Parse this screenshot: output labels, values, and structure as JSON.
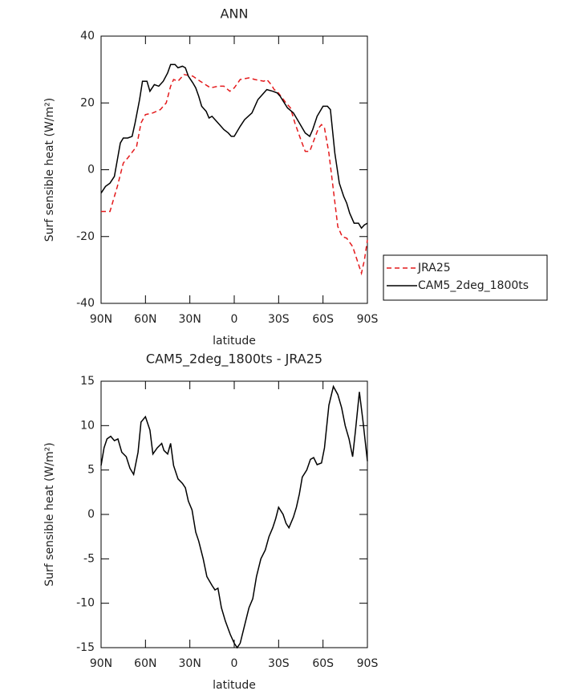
{
  "chart_data": [
    {
      "type": "line",
      "title": "ANN",
      "xlabel": "latitude",
      "ylabel": "Surf sensible heat (W/m²)",
      "xlim": [
        90,
        -90
      ],
      "xticks": [
        {
          "value": 90,
          "label": "90N"
        },
        {
          "value": 60,
          "label": "60N"
        },
        {
          "value": 30,
          "label": "30N"
        },
        0,
        {
          "value": -30,
          "label": "30S"
        },
        {
          "value": -60,
          "label": "60S"
        },
        {
          "value": -90,
          "label": "90S"
        }
      ],
      "ylim": [
        -40,
        40
      ],
      "yticks": [
        -40,
        -20,
        0,
        20,
        40
      ],
      "legend": "outside right",
      "series": [
        {
          "name": "JRA25",
          "color": "#e41a1c",
          "line_style": "dashed",
          "x": [
            90,
            84,
            79,
            75,
            72,
            66,
            63,
            60,
            55,
            50,
            46,
            43,
            41,
            38,
            34,
            28,
            23,
            16,
            11,
            7,
            3,
            0,
            -4,
            -10,
            -14,
            -20,
            -22,
            -25,
            -27,
            -29,
            -35,
            -38,
            -41,
            -45,
            -48,
            -51,
            -54,
            -57,
            -59,
            -61,
            -64,
            -70,
            -73,
            -76,
            -80,
            -83,
            -86,
            -88,
            -90
          ],
          "values": [
            -12.5,
            -12.5,
            -5,
            2,
            3.5,
            7,
            14,
            16.5,
            17,
            18,
            20,
            25,
            27,
            26.5,
            28.5,
            28,
            26.5,
            24.5,
            25,
            25,
            23.5,
            24.5,
            27,
            27.5,
            27,
            26.5,
            27,
            25.5,
            24,
            23.5,
            20,
            18.5,
            14,
            9,
            5.5,
            5.5,
            9,
            12.5,
            13.5,
            12.5,
            5,
            -17,
            -20,
            -20.5,
            -23,
            -27,
            -31,
            -27,
            -21
          ]
        },
        {
          "name": "CAM5_2deg_1800ts",
          "color": "#000000",
          "line_style": "solid",
          "x": [
            90,
            87,
            84,
            81,
            79,
            77,
            75,
            72,
            69,
            67,
            64,
            62,
            59,
            57,
            54,
            51,
            48,
            45,
            43,
            40,
            38,
            35,
            33,
            31,
            28,
            26,
            24,
            22,
            19,
            17,
            15,
            12,
            10,
            7,
            4,
            2,
            0,
            -4,
            -7,
            -12,
            -16,
            -22,
            -26,
            -29,
            -31,
            -36,
            -40,
            -44,
            -48,
            -51,
            -53,
            -56,
            -60,
            -63,
            -65,
            -68,
            -71,
            -74,
            -76,
            -78,
            -81,
            -84,
            -86,
            -88,
            -90
          ],
          "values": [
            -7,
            -5,
            -4,
            -2,
            3,
            8,
            9.5,
            9.5,
            10,
            14,
            21,
            26.5,
            26.5,
            23.5,
            25.5,
            25,
            26.5,
            29,
            31.5,
            31.5,
            30.5,
            31,
            30.5,
            28,
            26,
            24.5,
            22,
            19,
            17.5,
            15.5,
            16,
            14.5,
            13.5,
            12,
            11,
            10,
            10,
            13,
            15,
            17,
            21,
            24,
            23.5,
            23,
            22,
            18.5,
            17,
            14,
            11,
            10,
            12,
            16,
            19,
            19,
            18,
            5,
            -4,
            -8,
            -10,
            -13,
            -16,
            -16,
            -17.5,
            -16.5,
            -16
          ]
        }
      ]
    },
    {
      "type": "line",
      "title": "CAM5_2deg_1800ts - JRA25",
      "xlabel": "latitude",
      "ylabel": "Surf sensible heat (W/m²)",
      "xlim": [
        90,
        -90
      ],
      "xticks": [
        {
          "value": 90,
          "label": "90N"
        },
        {
          "value": 60,
          "label": "60N"
        },
        {
          "value": 30,
          "label": "30N"
        },
        0,
        {
          "value": -30,
          "label": "30S"
        },
        {
          "value": -60,
          "label": "60S"
        },
        {
          "value": -90,
          "label": "90S"
        }
      ],
      "ylim": [
        -15,
        15
      ],
      "yticks": [
        -15,
        -10,
        -5,
        0,
        5,
        10,
        15
      ],
      "series": [
        {
          "color": "#000000",
          "line_style": "solid",
          "x": [
            90,
            88,
            86,
            83.5,
            81,
            78.6,
            76,
            73,
            70.5,
            68,
            65,
            63,
            60,
            57,
            55,
            52,
            49,
            47.5,
            45,
            43,
            41,
            38,
            35,
            33,
            31,
            28.5,
            26,
            24,
            21,
            18.5,
            15,
            13,
            11,
            8.7,
            6,
            2.7,
            0,
            -2,
            -4,
            -7,
            -10,
            -12.5,
            -15,
            -18,
            -21,
            -23.5,
            -26,
            -28,
            -30,
            -33,
            -35,
            -37,
            -40,
            -42,
            -44,
            -46,
            -49,
            -51.5,
            -53.7,
            -56,
            -59,
            -61,
            -64,
            -67,
            -70,
            -72.6,
            -75,
            -77.6,
            -80,
            -82,
            -84.6,
            -87,
            -90
          ],
          "values": [
            5.5,
            7.5,
            8.5,
            8.8,
            8.3,
            8.5,
            7,
            6.5,
            5.2,
            4.5,
            7,
            10.4,
            11,
            9.5,
            6.8,
            7.5,
            8,
            7.2,
            6.8,
            8,
            5.5,
            4,
            3.5,
            3,
            1.5,
            0.5,
            -2,
            -3,
            -5,
            -7,
            -8,
            -8.5,
            -8.3,
            -10.5,
            -12,
            -13.5,
            -14.5,
            -15,
            -14.5,
            -12.5,
            -10.5,
            -9.5,
            -7,
            -5,
            -4,
            -2.5,
            -1.5,
            -0.5,
            0.8,
            0,
            -1,
            -1.5,
            -0.3,
            0.8,
            2.3,
            4.2,
            5,
            6.2,
            6.4,
            5.6,
            5.8,
            7.5,
            12.3,
            14.4,
            13.5,
            12,
            10,
            8.5,
            6.5,
            9.5,
            13.8,
            10.5,
            6
          ]
        }
      ]
    }
  ]
}
